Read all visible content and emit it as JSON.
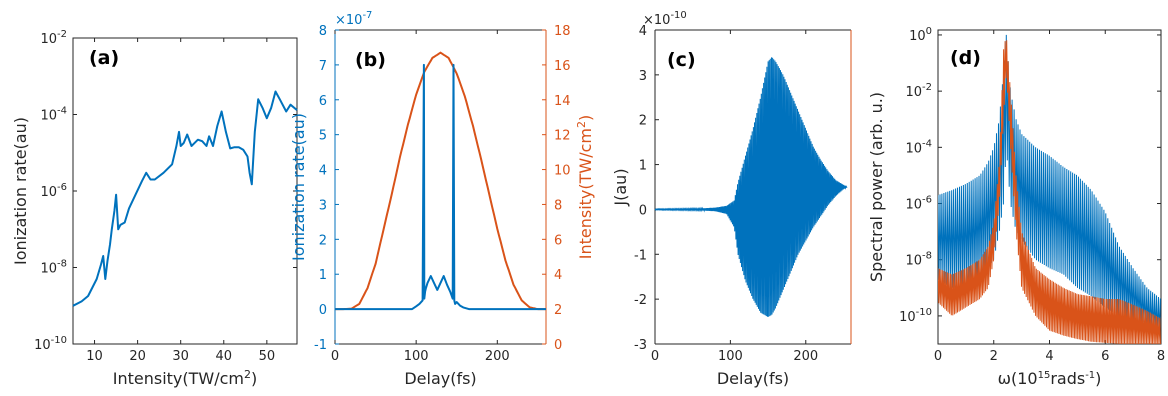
{
  "colors": {
    "blue": "#0072BD",
    "orange": "#D95319",
    "axis": "#262626"
  },
  "chart_data": [
    {
      "panel": "(a)",
      "type": "line",
      "xlabel": "Intensity(TW/cm",
      "xlabel_sup": "2",
      "xlabel_tail": ")",
      "ylabel": "Ionization rate(au)",
      "xlim": [
        5,
        57
      ],
      "ylim": [
        1e-10,
        0.01
      ],
      "yscale": "log",
      "xticks": [
        "10",
        "20",
        "30",
        "40",
        "50"
      ],
      "yticks": [
        {
          "base": "10",
          "exp": "-10"
        },
        {
          "base": "10",
          "exp": "-8"
        },
        {
          "base": "10",
          "exp": "-6"
        },
        {
          "base": "10",
          "exp": "-4"
        },
        {
          "base": "10",
          "exp": "-2"
        }
      ],
      "series": [
        {
          "color": "blue",
          "x": [
            5,
            7,
            8.5,
            9.5,
            10.5,
            11.5,
            12,
            12.5,
            13,
            13.6,
            14,
            14.6,
            15,
            15.5,
            16,
            17,
            18,
            19.5,
            21,
            22,
            23,
            24,
            26,
            28,
            29,
            29.6,
            30,
            30.7,
            31.5,
            32.5,
            33,
            34,
            35,
            36,
            36.6,
            37.5,
            38.5,
            39.5,
            40.5,
            41.5,
            42.5,
            43.5,
            44.5,
            45.5,
            46,
            46.5,
            47.2,
            48,
            49,
            50,
            51,
            52,
            53,
            54.5,
            55.5,
            57
          ],
          "y": [
            1e-09,
            1.3e-09,
            1.8e-09,
            3e-09,
            5e-09,
            1.2e-08,
            2e-08,
            5e-09,
            1.5e-08,
            4e-08,
            1e-07,
            3e-07,
            8e-07,
            1e-07,
            1.3e-07,
            1.5e-07,
            3.5e-07,
            8e-07,
            1.8e-06,
            3e-06,
            2e-06,
            2e-06,
            3e-06,
            5e-06,
            1.5e-05,
            3.5e-05,
            1.5e-05,
            1.8e-05,
            3e-05,
            1.5e-05,
            1.7e-05,
            2.2e-05,
            2e-05,
            1.5e-05,
            2.7e-05,
            1.5e-05,
            5e-05,
            0.00012,
            3.5e-05,
            1.3e-05,
            1.4e-05,
            1.4e-05,
            1.2e-05,
            8e-06,
            3e-06,
            1.5e-06,
            3.5e-05,
            0.00025,
            0.00015,
            8e-05,
            0.00015,
            0.0004,
            0.00025,
            0.00012,
            0.00018,
            0.00013
          ]
        }
      ]
    },
    {
      "panel": "(b)",
      "type": "line",
      "xlabel": "Delay(fs)",
      "ylabel_left": "Ionization rate(au)",
      "ylabel_right": "Intensity(TW/cm",
      "ylabel_right_sup": "2",
      "ylabel_right_tail": ")",
      "left_multiplier": {
        "base": "×10",
        "exp": "-7"
      },
      "xlim": [
        0,
        260
      ],
      "ylim_left": [
        -1,
        8
      ],
      "ylim_right": [
        0,
        18
      ],
      "xticks": [
        "0",
        "100",
        "200"
      ],
      "yticks_left": [
        "-1",
        "0",
        "1",
        "2",
        "3",
        "4",
        "5",
        "6",
        "7",
        "8"
      ],
      "yticks_right": [
        "0",
        "2",
        "4",
        "6",
        "8",
        "10",
        "12",
        "14",
        "16",
        "18"
      ],
      "series": [
        {
          "axis": "left",
          "color": "blue",
          "x": [
            0,
            95,
            100,
            104,
            108,
            109.5,
            110,
            111,
            112,
            114,
            118,
            122,
            126,
            130,
            134,
            138,
            142,
            145,
            146,
            147,
            148,
            150,
            154,
            158,
            165,
            260
          ],
          "y": [
            0,
            0,
            0.08,
            0.15,
            0.25,
            7.0,
            0.3,
            0.5,
            0.6,
            0.75,
            0.95,
            0.75,
            0.55,
            0.75,
            0.95,
            0.7,
            0.5,
            0.3,
            7.0,
            0.25,
            0.15,
            0.2,
            0.1,
            0.05,
            0,
            0
          ]
        },
        {
          "axis": "right",
          "color": "orange",
          "x": [
            0,
            10,
            20,
            30,
            40,
            50,
            60,
            70,
            80,
            90,
            100,
            110,
            120,
            130,
            140,
            150,
            160,
            170,
            180,
            190,
            200,
            210,
            220,
            230,
            240,
            250,
            260
          ],
          "y": [
            2.0,
            2.0,
            2.02,
            2.3,
            3.2,
            4.6,
            6.6,
            8.6,
            10.7,
            12.6,
            14.3,
            15.6,
            16.4,
            16.7,
            16.4,
            15.5,
            14.2,
            12.5,
            10.6,
            8.6,
            6.6,
            4.8,
            3.4,
            2.5,
            2.1,
            2.0,
            2.0
          ]
        }
      ]
    },
    {
      "panel": "(c)",
      "type": "line",
      "xlabel": "Delay(fs)",
      "ylabel": "J(au)",
      "multiplier": {
        "base": "×10",
        "exp": "-10"
      },
      "xlim": [
        0,
        260
      ],
      "ylim": [
        -3,
        4
      ],
      "xticks": [
        "0",
        "100",
        "200"
      ],
      "yticks": [
        "-3",
        "-2",
        "-1",
        "0",
        "1",
        "2",
        "3",
        "4"
      ],
      "envelope": {
        "color": "blue",
        "x": [
          0,
          60,
          80,
          95,
          105,
          110,
          120,
          130,
          140,
          150,
          155,
          160,
          170,
          180,
          190,
          200,
          210,
          220,
          230,
          240,
          250,
          255
        ],
        "upper": [
          0.01,
          0.02,
          0.04,
          0.08,
          0.2,
          0.6,
          1.2,
          1.8,
          2.5,
          3.3,
          3.4,
          3.3,
          3.0,
          2.6,
          2.2,
          1.8,
          1.4,
          1.1,
          0.85,
          0.65,
          0.55,
          0.5
        ],
        "lower": [
          -0.01,
          -0.02,
          -0.04,
          -0.1,
          -0.4,
          -1.0,
          -1.6,
          -2.0,
          -2.3,
          -2.4,
          -2.35,
          -2.2,
          -1.8,
          -1.4,
          -1.0,
          -0.7,
          -0.4,
          -0.15,
          0.1,
          0.3,
          0.45,
          0.5
        ]
      }
    },
    {
      "panel": "(d)",
      "type": "line",
      "xlabel_pre": "ω(10",
      "xlabel_sup": "15",
      "xlabel_mid": "rads",
      "xlabel_sup2": "-1",
      "xlabel_tail": ")",
      "ylabel": "Spectral power (arb. u.)",
      "xlim": [
        0,
        8
      ],
      "ylim": [
        1e-11,
        1.5
      ],
      "yscale": "log",
      "xticks": [
        "0",
        "2",
        "4",
        "6",
        "8"
      ],
      "yticks": [
        {
          "base": "10",
          "exp": "-10"
        },
        {
          "base": "10",
          "exp": "-8"
        },
        {
          "base": "10",
          "exp": "-6"
        },
        {
          "base": "10",
          "exp": "-4"
        },
        {
          "base": "10",
          "exp": "-2"
        },
        {
          "base": "10",
          "exp": "0"
        }
      ],
      "series": [
        {
          "color": "blue",
          "x": [
            0,
            0.5,
            1.0,
            1.5,
            1.8,
            2.0,
            2.2,
            2.35,
            2.45,
            2.6,
            2.8,
            3.0,
            3.5,
            4.0,
            4.5,
            5.0,
            5.5,
            6.0,
            6.5,
            7.0,
            7.5,
            8.0
          ],
          "upper": [
            2e-06,
            3e-06,
            5e-06,
            1e-05,
            3e-05,
            0.0001,
            0.001,
            0.05,
            1.0,
            0.01,
            0.001,
            0.0003,
            0.0001,
            5e-05,
            2e-05,
            1e-05,
            3e-06,
            5e-07,
            3e-08,
            5e-09,
            1e-09,
            4e-10
          ],
          "lower": [
            2e-09,
            1e-09,
            1e-09,
            2e-09,
            5e-09,
            1e-08,
            1e-07,
            1e-06,
            0.0001,
            1e-06,
            1e-07,
            5e-08,
            1e-08,
            5e-09,
            3e-09,
            1e-09,
            5e-10,
            2e-10,
            1e-10,
            5e-11,
            3e-11,
            2e-11
          ]
        },
        {
          "color": "orange",
          "x": [
            0,
            0.5,
            1.0,
            1.5,
            1.8,
            2.0,
            2.2,
            2.35,
            2.45,
            2.6,
            2.8,
            3.0,
            3.5,
            4.0,
            4.5,
            5.0,
            5.5,
            6.0,
            6.5,
            7.0,
            7.5,
            8.0
          ],
          "upper": [
            5e-09,
            3e-09,
            5e-09,
            1e-08,
            3e-08,
            2e-07,
            3e-05,
            0.3,
            1.0,
            0.01,
            1e-05,
            1e-07,
            5e-09,
            2e-09,
            1e-09,
            6e-10,
            5e-10,
            4e-10,
            4e-10,
            2.5e-10,
            1.5e-10,
            8e-11
          ],
          "lower": [
            3e-10,
            1e-10,
            2e-10,
            4e-10,
            1e-09,
            1e-08,
            1e-06,
            0.001,
            0.05,
            0.0001,
            1e-07,
            1e-09,
            1e-10,
            3e-11,
            2e-11,
            1.5e-11,
            1.2e-11,
            1.1e-11,
            1e-11,
            1e-11,
            1e-11,
            1e-11
          ]
        }
      ]
    }
  ]
}
